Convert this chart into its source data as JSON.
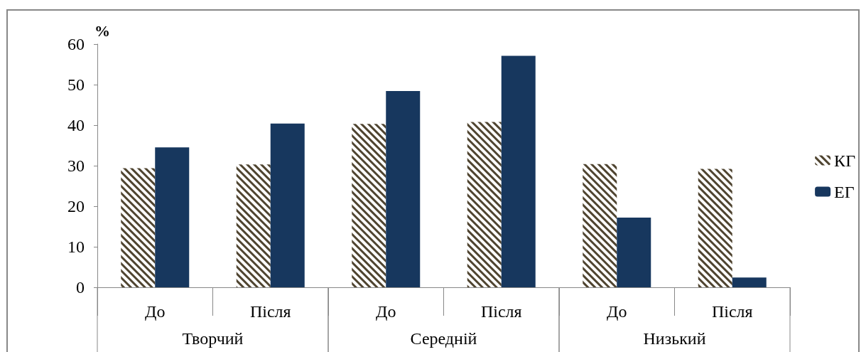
{
  "chart_data": {
    "type": "bar",
    "ylabel": "%",
    "categories": [
      "До",
      "Після",
      "До",
      "Після",
      "До",
      "Після"
    ],
    "series": [
      {
        "name": "КГ",
        "color": "#4f4430",
        "values": [
          29.4,
          30.3,
          40.3,
          40.8,
          30.4,
          29.2
        ]
      },
      {
        "name": "ЕГ",
        "color": "#17375e",
        "values": [
          34.5,
          40.4,
          48.4,
          57.1,
          17.2,
          2.4
        ]
      }
    ],
    "annotations": [
      "Творчий",
      "Середній",
      "Низький"
    ],
    "ylim": [
      0,
      60
    ],
    "yticks": [
      0,
      10,
      20,
      30,
      40,
      50,
      60
    ],
    "grid": false,
    "legend": "right"
  }
}
